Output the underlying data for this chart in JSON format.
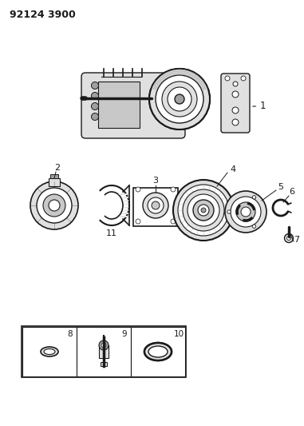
{
  "title": "92124 3900",
  "bg_color": "#ffffff",
  "line_color": "#1a1a1a",
  "fig_width": 3.81,
  "fig_height": 5.33,
  "dpi": 100,
  "gray_fill": "#c8c8c8",
  "mid_gray": "#a0a0a0",
  "light_gray": "#e0e0e0"
}
